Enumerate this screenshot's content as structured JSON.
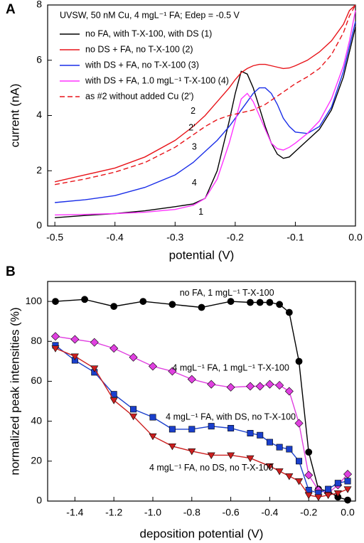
{
  "chart_data": [
    {
      "type": "line",
      "panel": "A",
      "annotation": "UVSW, 50 nM Cu, 4 mgL⁻¹ FA; Edep = -0.5 V",
      "xlabel": "potential (V)",
      "ylabel": "current (nA)",
      "xlim": [
        -0.512,
        0
      ],
      "ylim": [
        0,
        8
      ],
      "xticks": [
        -0.5,
        -0.4,
        -0.3,
        -0.2,
        -0.1,
        {
          "value": 0,
          "label": "0.0"
        }
      ],
      "yticks": [
        0,
        2,
        4,
        6,
        8
      ],
      "curve_labels": [
        "1",
        "2",
        "2'",
        "3",
        "4"
      ],
      "x": [
        -0.5,
        -0.45,
        -0.4,
        -0.35,
        -0.3,
        -0.27,
        -0.25,
        -0.23,
        -0.21,
        -0.2,
        -0.19,
        -0.18,
        -0.17,
        -0.16,
        -0.15,
        -0.14,
        -0.13,
        -0.12,
        -0.11,
        -0.1,
        -0.08,
        -0.06,
        -0.04,
        -0.02,
        -0.01,
        0
      ],
      "series": [
        {
          "name": "no FA, with T-X-100, with DS (1)",
          "color": "#000000",
          "style": "solid",
          "values": [
            0.3,
            0.38,
            0.45,
            0.55,
            0.7,
            0.8,
            1.0,
            2.0,
            3.8,
            4.8,
            5.6,
            5.5,
            5.0,
            4.3,
            3.6,
            3.0,
            2.6,
            2.45,
            2.5,
            2.7,
            3.1,
            3.5,
            4.2,
            5.4,
            6.3,
            7.2
          ]
        },
        {
          "name": "no DS + FA, no T-X-100 (2)",
          "color": "#e8141a",
          "style": "solid",
          "values": [
            1.6,
            1.85,
            2.1,
            2.5,
            3.1,
            3.6,
            4.0,
            4.5,
            5.0,
            5.3,
            5.55,
            5.7,
            5.8,
            5.85,
            5.85,
            5.8,
            5.75,
            5.7,
            5.72,
            5.8,
            6.0,
            6.3,
            6.7,
            7.3,
            7.8,
            8.0
          ]
        },
        {
          "name": "with DS + FA, no T-X-100 (3)",
          "color": "#1a2ee8",
          "style": "solid",
          "values": [
            0.85,
            0.95,
            1.1,
            1.4,
            1.85,
            2.3,
            2.7,
            3.1,
            3.6,
            3.9,
            4.2,
            4.5,
            4.8,
            5.0,
            5.0,
            4.8,
            4.4,
            3.9,
            3.6,
            3.4,
            3.35,
            3.6,
            4.3,
            5.6,
            6.5,
            7.4
          ]
        },
        {
          "name": "with DS + FA, 1.0 mgL⁻¹ T-X-100 (4)",
          "color": "#ff33ff",
          "style": "solid",
          "values": [
            0.4,
            0.42,
            0.45,
            0.5,
            0.6,
            0.75,
            1.0,
            1.7,
            3.0,
            3.8,
            4.6,
            4.8,
            4.5,
            4.0,
            3.5,
            3.0,
            2.8,
            2.75,
            2.85,
            3.0,
            3.35,
            3.8,
            4.6,
            5.8,
            6.7,
            7.8
          ]
        },
        {
          "name": "as #2 without added Cu (2')",
          "color": "#e8141a",
          "style": "dashed",
          "values": [
            1.5,
            1.7,
            1.95,
            2.3,
            2.85,
            3.3,
            3.6,
            3.85,
            4.0,
            4.05,
            4.1,
            4.15,
            4.2,
            4.3,
            4.4,
            4.55,
            4.7,
            4.85,
            5.0,
            5.15,
            5.4,
            5.7,
            6.2,
            7.0,
            7.6,
            8.0
          ]
        }
      ]
    },
    {
      "type": "line-marker",
      "panel": "B",
      "xlabel": "deposition potential (V)",
      "ylabel": "normalized peak intensities (%)",
      "xlim": [
        -1.54,
        0.04
      ],
      "ylim": [
        0,
        110
      ],
      "xticks": [
        -1.4,
        -1.2,
        {
          "value": -1,
          "label": "-1.0"
        },
        -0.8,
        -0.6,
        -0.4,
        -0.2,
        {
          "value": 0,
          "label": "0.0"
        }
      ],
      "yticks": [
        0,
        20,
        40,
        60,
        80,
        100
      ],
      "series": [
        {
          "name": "no FA, 1 mgL⁻¹ T-X-100",
          "color": "#000000",
          "marker": "circle",
          "x": [
            -1.5,
            -1.35,
            -1.2,
            -1.05,
            -0.9,
            -0.75,
            -0.6,
            -0.5,
            -0.45,
            -0.4,
            -0.35,
            -0.3,
            -0.25,
            -0.2,
            -0.15,
            -0.1,
            -0.05,
            0
          ],
          "values": [
            100,
            101,
            97.5,
            100,
            98.5,
            97,
            100,
            99.5,
            99.5,
            99.5,
            98.5,
            94.5,
            70,
            24.5,
            6,
            5,
            2,
            0.5
          ]
        },
        {
          "name": "4 mgL⁻¹ FA, 1 mgL⁻¹ T-X-100",
          "color": "#e040e0",
          "marker": "diamond",
          "x": [
            -1.5,
            -1.4,
            -1.3,
            -1.2,
            -1.1,
            -1.0,
            -0.9,
            -0.8,
            -0.7,
            -0.6,
            -0.5,
            -0.45,
            -0.4,
            -0.35,
            -0.3,
            -0.25,
            -0.2,
            -0.15,
            -0.1,
            -0.05,
            0
          ],
          "values": [
            82.5,
            81,
            79.5,
            76.5,
            72,
            67.5,
            65,
            61,
            58.5,
            57,
            57.5,
            57.5,
            58.5,
            58,
            55,
            39,
            13,
            5.5,
            4,
            8,
            13.5
          ]
        },
        {
          "name": "4 mgL⁻¹ FA, with DS, no T-X-100",
          "color": "#1a3fcc",
          "marker": "square",
          "x": [
            -1.5,
            -1.4,
            -1.3,
            -1.2,
            -1.1,
            -1.0,
            -0.9,
            -0.8,
            -0.7,
            -0.6,
            -0.5,
            -0.45,
            -0.4,
            -0.35,
            -0.3,
            -0.25,
            -0.2,
            -0.15,
            -0.1,
            -0.05,
            0
          ],
          "values": [
            78,
            70.5,
            64.5,
            53.5,
            46,
            42,
            36,
            36,
            37.5,
            36.5,
            34,
            33,
            29.5,
            27,
            26,
            20,
            5.5,
            4,
            6,
            9,
            10
          ]
        },
        {
          "name": "4 mgL⁻¹ FA, no DS, no T-X-100",
          "color": "#cc1f1f",
          "marker": "triangle-down",
          "x": [
            -1.5,
            -1.4,
            -1.3,
            -1.2,
            -1.1,
            -1.0,
            -0.9,
            -0.8,
            -0.7,
            -0.6,
            -0.5,
            -0.4,
            -0.35,
            -0.3,
            -0.25,
            -0.2,
            -0.15,
            -0.1,
            -0.05,
            0
          ],
          "values": [
            76.5,
            72.5,
            66.5,
            50.5,
            42.5,
            32.5,
            27.5,
            25,
            23,
            23,
            21.5,
            17.5,
            15,
            12.5,
            10,
            3,
            2,
            3,
            4,
            6
          ]
        }
      ]
    }
  ]
}
